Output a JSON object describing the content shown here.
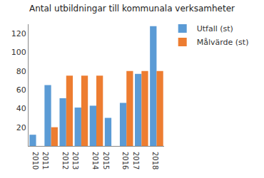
{
  "chart_data": {
    "type": "bar",
    "title": "Antal utbildningar till kommunala verksamheter",
    "categories": [
      "2010",
      "2011",
      "2012",
      "2013",
      "2014",
      "2015",
      "2016",
      "2017",
      "2018"
    ],
    "series": [
      {
        "name": "Utfall (st)",
        "color": "#5b9bd5",
        "values": [
          12,
          65,
          51,
          41,
          43,
          30,
          46,
          77,
          128
        ]
      },
      {
        "name": "Målvärde (st)",
        "color": "#ed7d31",
        "values": [
          null,
          20,
          75,
          75,
          75,
          null,
          80,
          80,
          80
        ]
      }
    ],
    "ylim": [
      0,
      130
    ],
    "yticks": [
      20,
      40,
      60,
      80,
      100,
      120
    ],
    "grid": false,
    "legend": "top right"
  }
}
